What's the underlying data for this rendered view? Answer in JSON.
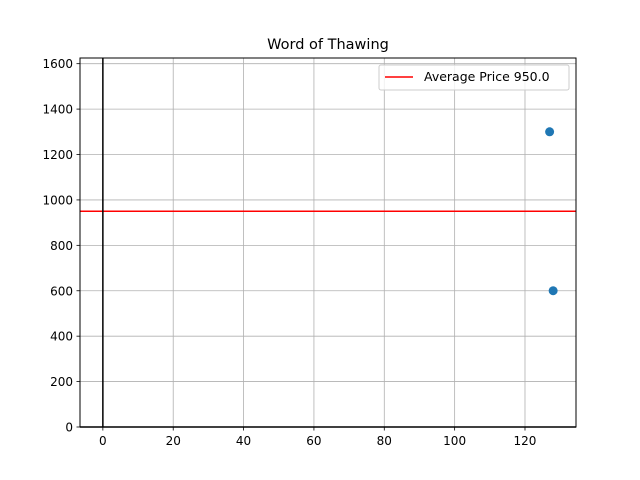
{
  "chart_data": {
    "type": "scatter",
    "title": "Word of Thawing",
    "xlabel": "",
    "ylabel": "",
    "xlim": [
      -6.5,
      134.5
    ],
    "ylim": [
      0,
      1625
    ],
    "x_ticks": [
      0,
      20,
      40,
      60,
      80,
      100,
      120
    ],
    "y_ticks": [
      0,
      200,
      400,
      600,
      800,
      1000,
      1200,
      1400,
      1600
    ],
    "grid": true,
    "legend_position": "top-right",
    "series": [
      {
        "points": [
          {
            "x": 127,
            "y": 1300
          },
          {
            "x": 128,
            "y": 600
          }
        ],
        "color": "#1f77b4"
      }
    ],
    "reference_lines": [
      {
        "orientation": "horizontal",
        "value": 950.0,
        "label": "Average Price 950.0",
        "color": "#ff0000"
      },
      {
        "orientation": "vertical",
        "value": 0,
        "color": "#000000"
      },
      {
        "orientation": "horizontal",
        "value": 0,
        "color": "#000000"
      }
    ]
  }
}
